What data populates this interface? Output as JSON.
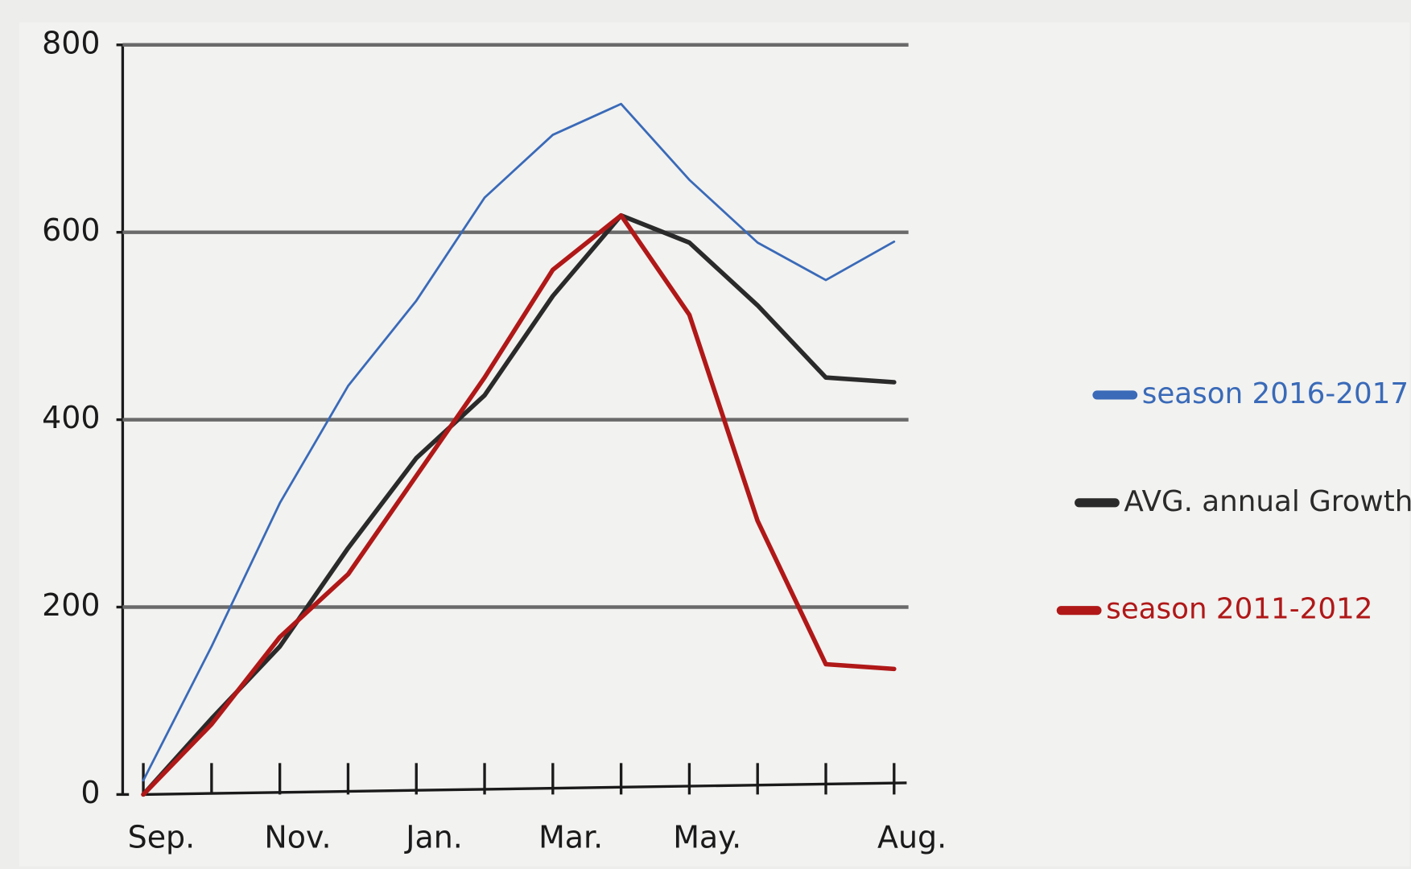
{
  "chart_data": {
    "type": "line",
    "categories": [
      "Sep.",
      null,
      "Nov.",
      null,
      "Jan.",
      null,
      "Mar.",
      null,
      "May.",
      null,
      null,
      "Aug."
    ],
    "series": [
      {
        "name": "season 2016-2017",
        "color": "#3a6ab8",
        "values": [
          15,
          158,
          311,
          436,
          527,
          637,
          704,
          737,
          656,
          589,
          549,
          590
        ]
      },
      {
        "name": "AVG. annual Growth",
        "color": "#2a2a2a",
        "values": [
          0,
          81,
          158,
          263,
          359,
          426,
          532,
          618,
          589,
          522,
          445,
          440
        ]
      },
      {
        "name": "season 2011-2012",
        "color": "#b01818",
        "values": [
          0,
          75,
          168,
          235,
          340,
          445,
          560,
          618,
          512,
          292,
          139,
          134
        ]
      }
    ],
    "ylim": [
      0,
      800
    ],
    "yticks": [
      0,
      200,
      400,
      600,
      800
    ],
    "grid": true
  }
}
